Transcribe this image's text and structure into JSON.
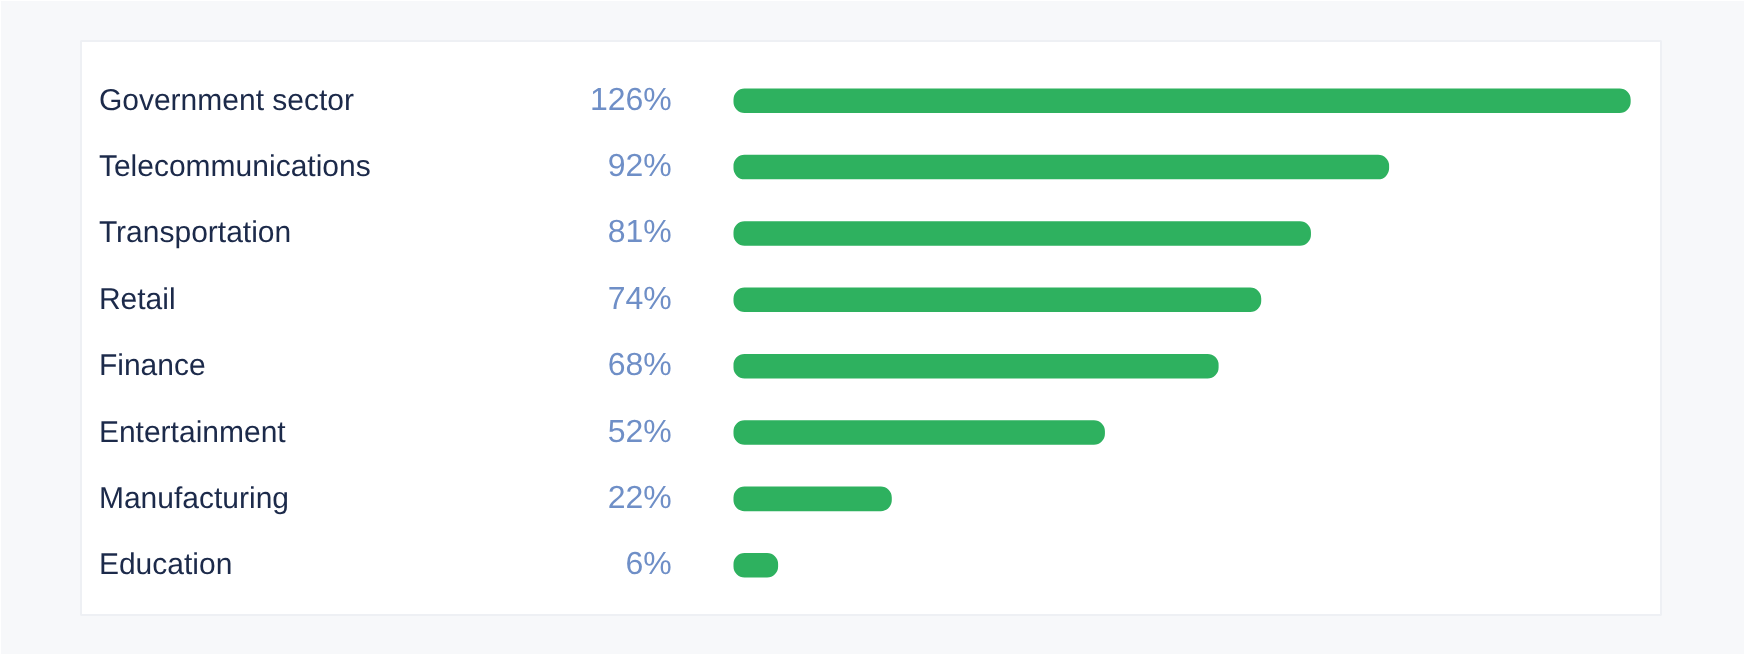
{
  "chart_data": {
    "type": "bar",
    "orientation": "horizontal",
    "categories": [
      "Government sector",
      "Telecommunications",
      "Transportation",
      "Retail",
      "Finance",
      "Entertainment",
      "Manufacturing",
      "Education"
    ],
    "values": [
      126,
      92,
      81,
      74,
      68,
      52,
      22,
      6
    ],
    "value_labels": [
      "126%",
      "92%",
      "81%",
      "74%",
      "68%",
      "52%",
      "22%",
      "6%"
    ],
    "color": "#2eb15f"
  }
}
